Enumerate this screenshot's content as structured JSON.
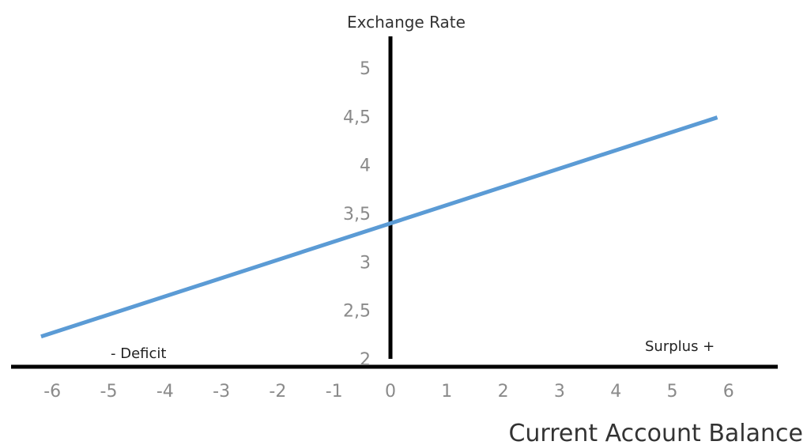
{
  "chart_data": {
    "type": "line",
    "xlabel": "Current Account Balance",
    "ylabel": "Exchange Rate",
    "xlim": [
      -6,
      6
    ],
    "ylim": [
      2,
      5
    ],
    "x_ticks": [
      "-6",
      "-5",
      "-4",
      "-3",
      "-2",
      "-1",
      "0",
      "1",
      "2",
      "3",
      "4",
      "5",
      "6"
    ],
    "y_ticks": [
      "2",
      "2,5",
      "3",
      "3,5",
      "4",
      "4,5",
      "5"
    ],
    "annotations": {
      "deficit": "-  Deficit",
      "surplus": "Surplus +"
    },
    "series": [
      {
        "x": [
          -6.2,
          5.8
        ],
        "y": [
          2.23,
          4.49
        ],
        "color": "#5b9bd5"
      }
    ]
  }
}
